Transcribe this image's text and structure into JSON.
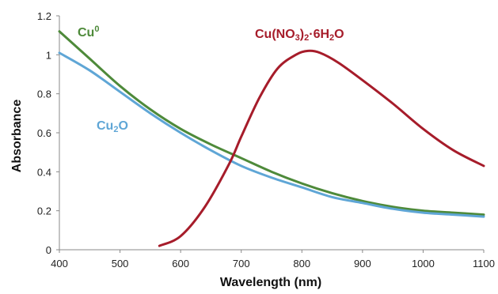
{
  "chart_data": {
    "type": "line",
    "xlabel": "Wavelength (nm)",
    "ylabel": "Absorbance",
    "xlim": [
      400,
      1100
    ],
    "ylim": [
      0,
      1.2
    ],
    "x_ticks": [
      "400",
      "500",
      "600",
      "700",
      "800",
      "900",
      "1000",
      "1100"
    ],
    "y_ticks": [
      "0",
      "0.2",
      "0.4",
      "0.6",
      "0.8",
      "1",
      "1.2"
    ],
    "grid": false,
    "legend": "none",
    "series": [
      {
        "name": "Cu0",
        "label_main": "Cu",
        "label_sup": "0",
        "color": "#4e8a3a",
        "x": [
          400,
          450,
          500,
          550,
          600,
          650,
          700,
          750,
          800,
          850,
          900,
          950,
          1000,
          1050,
          1100
        ],
        "y": [
          1.12,
          0.98,
          0.84,
          0.72,
          0.62,
          0.54,
          0.47,
          0.4,
          0.34,
          0.29,
          0.25,
          0.22,
          0.2,
          0.19,
          0.18
        ]
      },
      {
        "name": "Cu2O",
        "label_parts": [
          "Cu",
          "2",
          "O"
        ],
        "color": "#5fa6d6",
        "x": [
          400,
          450,
          500,
          550,
          600,
          650,
          700,
          750,
          800,
          850,
          900,
          950,
          1000,
          1050,
          1100
        ],
        "y": [
          1.01,
          0.92,
          0.81,
          0.7,
          0.6,
          0.51,
          0.43,
          0.37,
          0.32,
          0.27,
          0.24,
          0.21,
          0.19,
          0.18,
          0.17
        ]
      },
      {
        "name": "Cu(NO3)2·6H2O",
        "label_parts": [
          "Cu(NO",
          "3",
          ")",
          "2",
          "·6H",
          "2",
          "O"
        ],
        "color": "#a61c2a",
        "x": [
          565,
          600,
          640,
          680,
          700,
          730,
          760,
          790,
          810,
          830,
          860,
          900,
          950,
          1000,
          1050,
          1100
        ],
        "y": [
          0.02,
          0.07,
          0.22,
          0.44,
          0.58,
          0.78,
          0.93,
          1.0,
          1.02,
          1.01,
          0.96,
          0.87,
          0.75,
          0.62,
          0.51,
          0.43
        ]
      }
    ]
  }
}
